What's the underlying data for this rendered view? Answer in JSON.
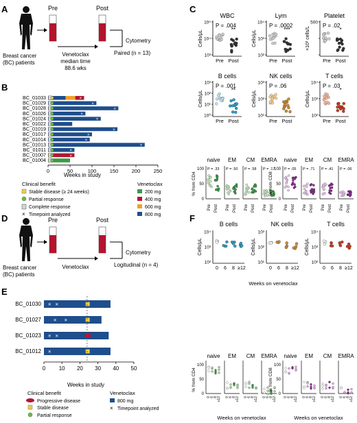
{
  "panels": {
    "A": {
      "letter": "A",
      "pre": "Pre",
      "post": "Post",
      "cohort_line1": "Breast cancer",
      "cohort_line2": "(BC) patients",
      "drug": "Venetoclax",
      "median1": "median time",
      "median2": "88.6 wks",
      "assay": "Cytometry",
      "design": "Paired (n = 13)"
    },
    "B": {
      "letter": "B",
      "xlabel": "Weeks in study",
      "clinical_benefit_title": "Clinical benefit",
      "benefit_legend": [
        "Stable disease (≥ 24 weeks)",
        "Partial response",
        "Complete response",
        "Timepoint analyzed"
      ],
      "dose_title": "Venetoclax",
      "dose_legend": [
        {
          "label": "200 mg",
          "color": "#3a9b48"
        },
        {
          "label": "400 mg",
          "color": "#b0182f"
        },
        {
          "label": "600 mg",
          "color": "#f0a028"
        },
        {
          "label": "800 mg",
          "color": "#1f4e8c"
        }
      ]
    },
    "C": {
      "letter": "C",
      "ylabel": "Cells/μL",
      "ylabel_platelet": "×10³ cells/L",
      "xticks": [
        "Pre",
        "Post"
      ],
      "plots": [
        {
          "title": "WBC",
          "p": "P = .004",
          "stars": "**"
        },
        {
          "title": "Lym",
          "p": "P = .0002",
          "stars": "***"
        },
        {
          "title": "Platelet",
          "p": "P = .02",
          "stars": "*"
        },
        {
          "title": "B cells",
          "p": "P = .001",
          "stars": "**"
        },
        {
          "title": "NK cells",
          "p": "P = .06",
          "stars": ""
        },
        {
          "title": "T cells",
          "p": "P = .03",
          "stars": "*"
        }
      ],
      "cd4_ylabel": "% from CD4",
      "cd8_ylabel": "% from CD8",
      "subsets": [
        "naive",
        "EM",
        "CM",
        "EMRA"
      ],
      "cd4_p": [
        "P = .33",
        "P = .50",
        "P = .58",
        "P = .17"
      ],
      "cd8_p": [
        "P = .05",
        "P = .71",
        "P = .41",
        "P = .06"
      ]
    },
    "D": {
      "letter": "D",
      "pre": "Pre",
      "post": "Post",
      "cohort_line1": "Breast cancer",
      "cohort_line2": "(BC) patients",
      "drug": "Venetoclax",
      "assay": "Cytometry",
      "design": "Logitudinal (n = 4)"
    },
    "E": {
      "letter": "E",
      "xlabel": "Weeks in study",
      "clinical_benefit_title": "Clinical benefit",
      "benefit_legend": [
        "Progressive disease",
        "Stable disease",
        "Partial response"
      ],
      "dose_title": "Venetoclax",
      "dose_legend": [
        {
          "label": "800 mg",
          "color": "#1f4e8c"
        }
      ],
      "timepoint": "Timepoint analyzed"
    },
    "F": {
      "letter": "F",
      "ylabel": "Cells/μL",
      "xlabel": "Weeks on venetoclax",
      "xticks": [
        "0",
        "6",
        "8",
        "≥12"
      ],
      "plots": [
        "B cells",
        "NK cells",
        "T cells"
      ],
      "cd4_ylabel": "% from CD4",
      "cd8_ylabel": "% from CD8",
      "subsets": [
        "naive",
        "EM",
        "CM",
        "EMRA"
      ]
    }
  },
  "chart_data": [
    {
      "type": "bar",
      "id": "B",
      "categories": [
        "BC_01033",
        "BC_01029",
        "BC_01028",
        "BC_01026",
        "BC_01024",
        "BC_01022",
        "BC_01019",
        "BC_01017",
        "BC_01014",
        "BC_01013",
        "BC_01011",
        "BC_01007",
        "BC_01004"
      ],
      "values": [
        82,
        110,
        160,
        85,
        120,
        55,
        158,
        100,
        95,
        220,
        60,
        60,
        50
      ],
      "xlim": [
        0,
        250
      ],
      "xticks": [
        0,
        50,
        100,
        150,
        200,
        250
      ],
      "xlabel": "Weeks in study"
    },
    {
      "type": "bar",
      "id": "E",
      "categories": [
        "BC_01030",
        "BC_01027",
        "BC_01023",
        "BC_01012"
      ],
      "values": [
        37,
        32,
        36,
        37
      ],
      "xlim": [
        0,
        50
      ],
      "xticks": [
        0,
        10,
        20,
        30,
        40,
        50
      ],
      "xlabel": "Weeks in study"
    }
  ]
}
